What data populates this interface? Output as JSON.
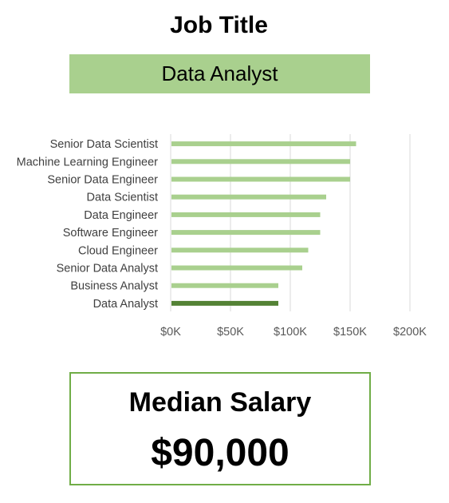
{
  "header": {
    "title": "Job Title"
  },
  "selector": {
    "value": "Data Analyst"
  },
  "chart_data": {
    "type": "bar",
    "orientation": "horizontal",
    "categories": [
      "Senior Data Scientist",
      "Machine Learning Engineer",
      "Senior Data Engineer",
      "Data Scientist",
      "Data Engineer",
      "Software Engineer",
      "Cloud Engineer",
      "Senior Data Analyst",
      "Business Analyst",
      "Data Analyst"
    ],
    "values": [
      155000,
      150000,
      150000,
      130000,
      125000,
      125000,
      115000,
      110000,
      90000,
      90000
    ],
    "highlight": "Data Analyst",
    "xlim": [
      0,
      200000
    ],
    "xticks": [
      "$0K",
      "$50K",
      "$100K",
      "$150K",
      "$200K"
    ],
    "grid": true,
    "colors": {
      "bar": "#a9d08e",
      "highlight": "#548235",
      "grid": "#d9d9d9"
    }
  },
  "card": {
    "label": "Median Salary",
    "value": "$90,000",
    "border_color": "#70ad47"
  }
}
